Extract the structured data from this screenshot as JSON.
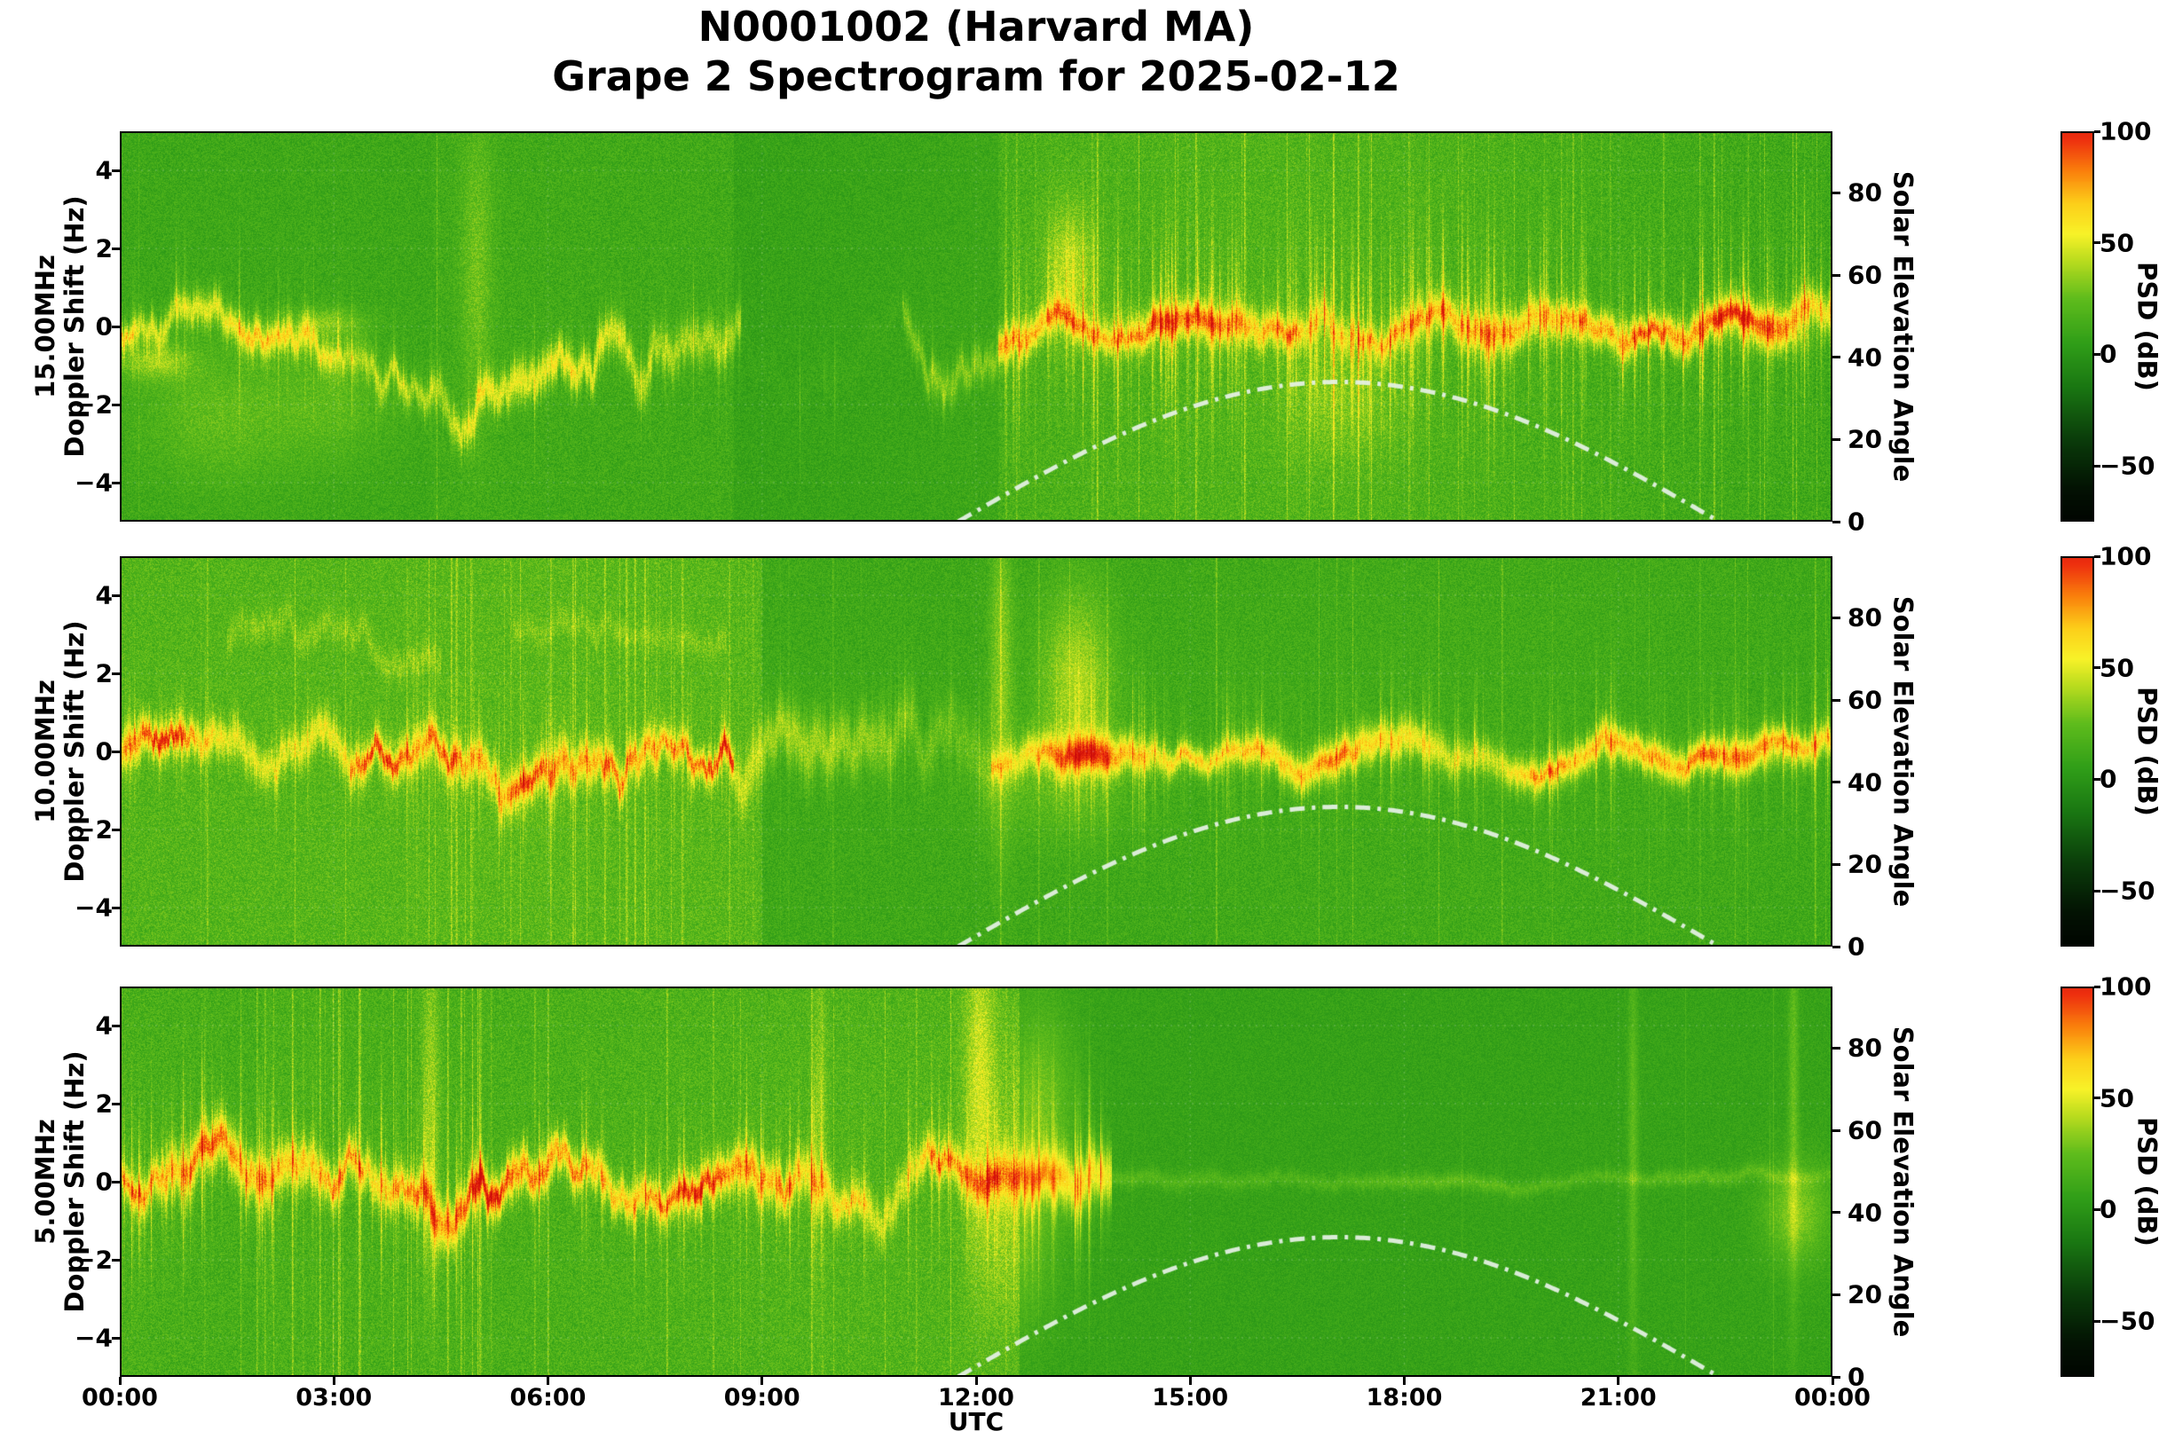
{
  "header": {
    "line1": "N0001002 (Harvard MA)",
    "line2": "Grape 2 Spectrogram for 2025-02-12"
  },
  "chart_data": {
    "type": "heatmap",
    "title": "N0001002 (Harvard MA)",
    "subtitle": "Grape 2 Spectrogram for 2025-02-12",
    "xlabel": "UTC",
    "x_ticks": [
      "00:00",
      "03:00",
      "06:00",
      "09:00",
      "12:00",
      "15:00",
      "18:00",
      "21:00",
      "00:00"
    ],
    "x_range_hours": [
      0,
      24
    ],
    "ylabel": "Doppler Shift (Hz)",
    "doppler_ticks": [
      "4",
      "2",
      "0",
      "−2",
      "−4"
    ],
    "doppler_tick_values": [
      4,
      2,
      0,
      -2,
      -4
    ],
    "doppler_range": [
      -5,
      5
    ],
    "right_axis": {
      "label": "Solar Elevation Angle",
      "ticks": [
        "80",
        "60",
        "40",
        "20",
        "0"
      ],
      "tick_values": [
        80,
        60,
        40,
        20,
        0
      ],
      "range": [
        0,
        95
      ]
    },
    "colorbar": {
      "label": "PSD (dB)",
      "ticks": [
        "100",
        "50",
        "0",
        "−50"
      ],
      "tick_values": [
        100,
        50,
        0,
        -50
      ],
      "range": [
        -75,
        100
      ],
      "stops": [
        [
          -80,
          "#000000"
        ],
        [
          -60,
          "#031203"
        ],
        [
          -38,
          "#0a3c0a"
        ],
        [
          -15,
          "#197612"
        ],
        [
          5,
          "#309e18"
        ],
        [
          25,
          "#5fbc1c"
        ],
        [
          42,
          "#b9dc1e"
        ],
        [
          54,
          "#f8f228"
        ],
        [
          68,
          "#fccd19"
        ],
        [
          82,
          "#fa800c"
        ],
        [
          96,
          "#ee300e"
        ],
        [
          115,
          "#cd0c0a"
        ]
      ]
    },
    "grid": {
      "color": "#ffffff",
      "alpha": 0.2,
      "x_hours": [
        3,
        6,
        9,
        12,
        15,
        18,
        21
      ]
    },
    "solar_elevation_curve": {
      "style": "dash-dot",
      "color": "#e8f2e8",
      "rise_utc": 11.75,
      "noon_utc": 17.08,
      "set_utc": 22.42,
      "peak_deg": 34
    },
    "panels": [
      {
        "id": "15mhz",
        "freq_label": "15.00MHz",
        "seed": 11,
        "bg": [
          {
            "t0": 0,
            "t1": 4.4,
            "level": 12,
            "noise": 10,
            "streak_p": 0.02,
            "streak_amp": 16,
            "tall_p": 0.3
          },
          {
            "t0": 4.4,
            "t1": 8.6,
            "level": 14,
            "noise": 11,
            "streak_p": 0.02,
            "streak_amp": 14,
            "tall_p": 0.3
          },
          {
            "t0": 8.6,
            "t1": 12.3,
            "level": 9,
            "noise": 9,
            "streak_p": 0.025,
            "streak_amp": 12,
            "tall_p": 0.35
          },
          {
            "t0": 12.3,
            "t1": 24,
            "level": 14,
            "noise": 12,
            "streak_p": 0.1,
            "streak_amp": 16,
            "tall_p": 0.6
          }
        ],
        "trace": [
          {
            "t0": 0,
            "t1": 4.4,
            "amp": 46,
            "core": 24,
            "bias": -0.4,
            "jitter": 0.3,
            "width": 0.3,
            "spike_p": 0.035,
            "spread_amp": 16,
            "spread_w": 1.0
          },
          {
            "t0": 4.4,
            "t1": 8.7,
            "amp": 38,
            "core": 8,
            "bias": 0.1,
            "jitter": 0.45,
            "width": 0.34,
            "spike_p": 0.03,
            "spread_amp": 13,
            "spread_w": 0.9
          },
          {
            "t0": 8.7,
            "t1": 12.3,
            "amp": 22,
            "core": 0,
            "bias": -0.4,
            "jitter": 0.38,
            "width": 0.3,
            "spike_p": 0.02,
            "spread_amp": 8,
            "spread_w": 0.8,
            "gappy": 1
          },
          {
            "t0": 12.3,
            "t1": 24,
            "amp": 56,
            "core": 20,
            "bias": 0.1,
            "jitter": 0.18,
            "width": 0.32,
            "spike_p": 0.1,
            "spread_amp": 28,
            "spread_w": 1.4
          }
        ],
        "events": [
          {
            "t": 1.4,
            "dt": 1.1,
            "y": -2.3,
            "sy": 1.2,
            "amp": 13
          },
          {
            "t": 3.0,
            "dt": 0.8,
            "y": -2.0,
            "sy": 1.0,
            "amp": 10
          },
          {
            "t": 0.5,
            "dt": 0.5,
            "y": -0.9,
            "sy": 0.32,
            "amp": 24
          },
          {
            "t": 2.9,
            "dt": 0.5,
            "y": 0.1,
            "sy": 0.26,
            "amp": 20
          },
          {
            "t": 5.0,
            "dt": 0.22,
            "y": 1.5,
            "sy": 2.6,
            "amp": 15
          },
          {
            "t": 13.3,
            "dt": 0.35,
            "y": 1.4,
            "sy": 1.2,
            "amp": 26
          },
          {
            "t": 14.6,
            "dt": 0.7,
            "y": 0.1,
            "sy": 0.28,
            "amp": 18
          },
          {
            "t": 17.1,
            "dt": 0.8,
            "y": -1.9,
            "sy": 1.1,
            "amp": 13
          },
          {
            "t": 20.6,
            "dt": 1.0,
            "y": -0.1,
            "sy": 0.25,
            "amp": 16
          },
          {
            "t": 23.2,
            "dt": 0.5,
            "y": -0.3,
            "sy": 0.3,
            "amp": 18
          }
        ]
      },
      {
        "id": "10mhz",
        "freq_label": "10.00MHz",
        "seed": 22,
        "bg": [
          {
            "t0": 0,
            "t1": 4,
            "level": 20,
            "noise": 12,
            "streak_p": 0.04,
            "streak_amp": 13,
            "tall_p": 0.5
          },
          {
            "t0": 4,
            "t1": 9,
            "level": 21,
            "noise": 12,
            "streak_p": 0.12,
            "streak_amp": 13,
            "tall_p": 0.75
          },
          {
            "t0": 9,
            "t1": 12.2,
            "level": 12,
            "noise": 10,
            "streak_p": 0.04,
            "streak_amp": 11,
            "tall_p": 0.4
          },
          {
            "t0": 12.2,
            "t1": 24,
            "level": 12,
            "noise": 10,
            "streak_p": 0.05,
            "streak_amp": 12,
            "tall_p": 0.5
          }
        ],
        "trace": [
          {
            "t0": 0,
            "t1": 8.6,
            "amp": 52,
            "core": 36,
            "bias": -0.1,
            "jitter": 0.34,
            "width": 0.34,
            "spike_p": 0.045,
            "spread_amp": 17,
            "spread_w": 0.9
          },
          {
            "t0": 8.6,
            "t1": 12.2,
            "amp": 25,
            "core": 0,
            "bias": 0,
            "jitter": 0.4,
            "width": 0.55,
            "spike_p": 0.02,
            "spread_amp": 9,
            "spread_w": 1.0,
            "gappy": 1
          },
          {
            "t0": 12.2,
            "t1": 24,
            "amp": 54,
            "core": 18,
            "bias": -0.05,
            "jitter": 0.15,
            "width": 0.3,
            "spike_p": 0.06,
            "spread_amp": 20,
            "spread_w": 1.1
          }
        ],
        "extra": [
          {
            "t0": 1.5,
            "t1": 4.5,
            "amp": 12,
            "center": 2.8,
            "jitter": 0.3,
            "width": 0.25
          },
          {
            "t0": 5.5,
            "t1": 8.5,
            "amp": 10,
            "center": 3.1,
            "jitter": 0.22,
            "width": 0.22
          }
        ],
        "events": [
          {
            "t": 12.35,
            "dt": 0.16,
            "y": 2,
            "sy": 3,
            "amp": 22
          },
          {
            "t": 13.4,
            "dt": 0.5,
            "y": 1.8,
            "sy": 1.6,
            "amp": 28
          },
          {
            "t": 13.6,
            "dt": 0.5,
            "y": 0,
            "sy": 0.35,
            "amp": 26
          },
          {
            "t": 13.1,
            "dt": 1.1,
            "y": -0.9,
            "sy": 1.0,
            "amp": 10
          },
          {
            "t": 22.8,
            "dt": 0.7,
            "y": -0.1,
            "sy": 0.3,
            "amp": 20
          }
        ]
      },
      {
        "id": "5mhz",
        "freq_label": "5.00MHz",
        "seed": 33,
        "bg": [
          {
            "t0": 0,
            "t1": 2,
            "level": 17,
            "noise": 12,
            "streak_p": 0.04,
            "streak_amp": 14,
            "tall_p": 0.5
          },
          {
            "t0": 2,
            "t1": 5.2,
            "level": 19,
            "noise": 12,
            "streak_p": 0.1,
            "streak_amp": 15,
            "tall_p": 0.7
          },
          {
            "t0": 5.2,
            "t1": 12.6,
            "level": 18,
            "noise": 12,
            "streak_p": 0.05,
            "streak_amp": 13,
            "tall_p": 0.5
          },
          {
            "t0": 12.6,
            "t1": 24,
            "level": 7,
            "noise": 7,
            "streak_p": 0.006,
            "streak_amp": 9,
            "tall_p": 0.6
          }
        ],
        "trace": [
          {
            "t0": 0,
            "t1": 12.3,
            "amp": 58,
            "core": 28,
            "bias": 0,
            "jitter": 0.3,
            "width": 0.38,
            "spike_p": 0.07,
            "spread_amp": 26,
            "spread_w": 1.2
          },
          {
            "t0": 12.3,
            "t1": 13.9,
            "amp": 50,
            "core": 10,
            "bias": 0.15,
            "jitter": 0.2,
            "width": 0.5,
            "spike_p": 0.1,
            "spread_amp": 28,
            "spread_w": 1.6
          },
          {
            "t0": 13.9,
            "t1": 24,
            "amp": 16,
            "core": 0,
            "bias": 0.05,
            "jitter": 0.06,
            "width": 0.14,
            "spike_p": 0.004,
            "spread_amp": 4,
            "spread_w": 0.5
          }
        ],
        "events": [
          {
            "t": 4.35,
            "dt": 0.12,
            "y": 2,
            "sy": 3,
            "amp": 20
          },
          {
            "t": 9.8,
            "dt": 0.1,
            "y": 1.5,
            "sy": 2.6,
            "amp": 16
          },
          {
            "t": 12.05,
            "dt": 0.22,
            "y": 2.5,
            "sy": 3.0,
            "amp": 28
          },
          {
            "t": 12.9,
            "dt": 0.45,
            "y": 2.0,
            "sy": 1.8,
            "amp": 20
          },
          {
            "t": 12.6,
            "dt": 0.5,
            "y": -1.5,
            "sy": 1.6,
            "amp": 16
          },
          {
            "t": 21.2,
            "dt": 0.07,
            "y": 1,
            "sy": 4,
            "amp": 16
          },
          {
            "t": 23.45,
            "dt": 0.07,
            "y": 2,
            "sy": 4,
            "amp": 18
          },
          {
            "t": 23.5,
            "dt": 0.45,
            "y": -0.8,
            "sy": 0.9,
            "amp": 24
          }
        ]
      }
    ]
  }
}
